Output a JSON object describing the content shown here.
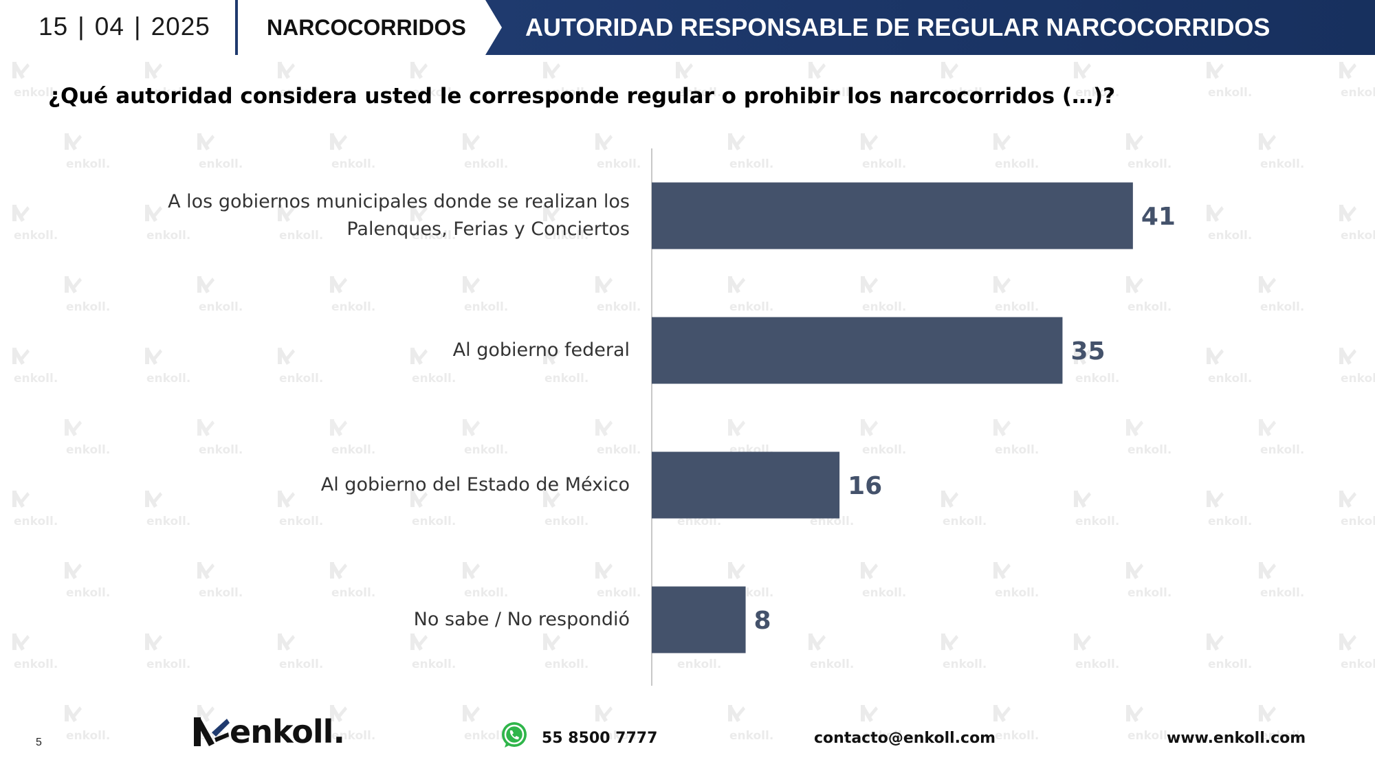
{
  "header": {
    "date_day": "15",
    "date_month": "04",
    "date_year": "2025",
    "date_separator": "|",
    "section": "NARCOCORRIDOS",
    "banner_title": "AUTORIDAD RESPONSABLE DE REGULAR NARCOCORRIDOS",
    "banner_color": "#1f3a6e"
  },
  "question": "¿Qué autoridad considera usted le corresponde regular o prohibir los narcocorridos (…)?",
  "chart_data": {
    "type": "bar",
    "orientation": "horizontal",
    "categories": [
      [
        "A los gobiernos municipales donde se realizan los",
        "Palenques, Ferias y Conciertos"
      ],
      [
        "Al gobierno federal"
      ],
      [
        "Al gobierno del Estado de México"
      ],
      [
        "No sabe / No respondió"
      ]
    ],
    "values": [
      41,
      35,
      16,
      8
    ],
    "bar_color": "#44526b",
    "xlim": [
      0,
      60
    ],
    "grid": false,
    "legend": "none"
  },
  "watermark_text": "enkoll.",
  "footer": {
    "page_number": "5",
    "logo_text": "enkoll.",
    "phone": "55 8500 7777",
    "email": "contacto@enkoll.com",
    "website": "www.enkoll.com",
    "icons": [
      "enkoll-logo-icon",
      "whatsapp-icon"
    ]
  }
}
